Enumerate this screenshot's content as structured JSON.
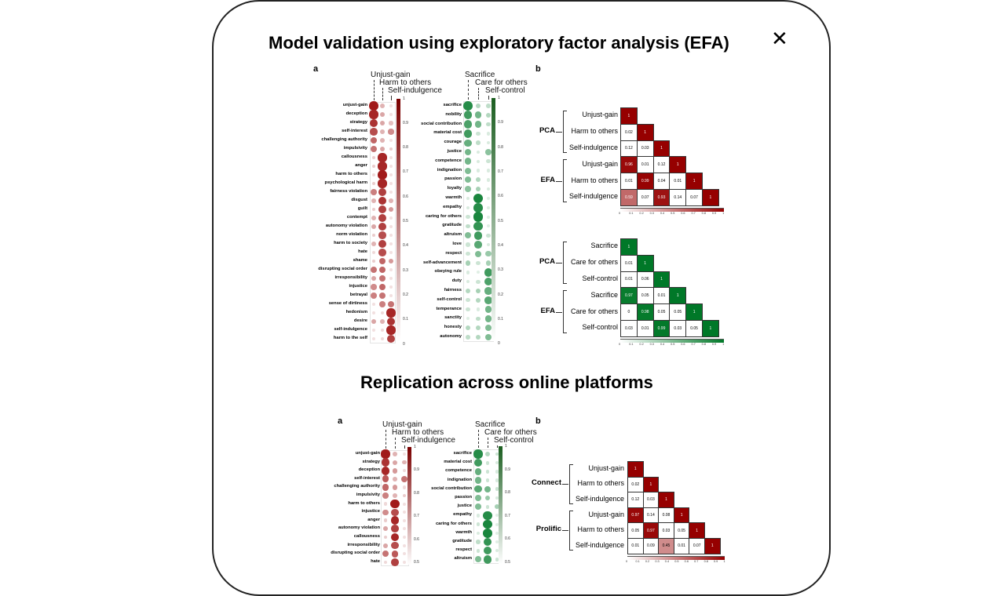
{
  "titles": {
    "main": "Model validation using exploratory factor analysis (EFA)",
    "section2": "Replication across online platforms"
  },
  "close_icon": "close-icon",
  "panels": {
    "a": "a",
    "b": "b"
  },
  "top_red": {
    "headers": [
      "Unjust-gain",
      "Harm to others",
      "Self-indulgence"
    ],
    "ticks": [
      "1",
      "0.9",
      "0.8",
      "0.7",
      "0.6",
      "0.5",
      "0.4",
      "0.3",
      "0.2",
      "0.1",
      "0"
    ],
    "rows": [
      {
        "label": "unjust-gain",
        "v": [
          0.9,
          0.3,
          0.1
        ]
      },
      {
        "label": "deception",
        "v": [
          0.85,
          0.35,
          0.1
        ]
      },
      {
        "label": "strategy",
        "v": [
          0.8,
          0.35,
          0.25
        ]
      },
      {
        "label": "self-interest",
        "v": [
          0.7,
          0.3,
          0.45
        ]
      },
      {
        "label": "challenging authority",
        "v": [
          0.6,
          0.3,
          0.1
        ]
      },
      {
        "label": "impulsivity",
        "v": [
          0.55,
          0.35,
          0.2
        ]
      },
      {
        "label": "callousness",
        "v": [
          0.2,
          0.85,
          0.1
        ]
      },
      {
        "label": "anger",
        "v": [
          0.2,
          0.85,
          0.1
        ]
      },
      {
        "label": "harm to others",
        "v": [
          0.15,
          0.9,
          0.1
        ]
      },
      {
        "label": "psychological harm",
        "v": [
          0.2,
          0.85,
          0.1
        ]
      },
      {
        "label": "fairness violation",
        "v": [
          0.5,
          0.75,
          0.1
        ]
      },
      {
        "label": "disgust",
        "v": [
          0.3,
          0.8,
          0.3
        ]
      },
      {
        "label": "guilt",
        "v": [
          0.2,
          0.75,
          0.4
        ]
      },
      {
        "label": "contempt",
        "v": [
          0.3,
          0.75,
          0.1
        ]
      },
      {
        "label": "autonomy violation",
        "v": [
          0.35,
          0.75,
          0.1
        ]
      },
      {
        "label": "norm violation",
        "v": [
          0.2,
          0.7,
          0.1
        ]
      },
      {
        "label": "harm to society",
        "v": [
          0.3,
          0.75,
          0.1
        ]
      },
      {
        "label": "hate",
        "v": [
          0.15,
          0.7,
          0.1
        ]
      },
      {
        "label": "shame",
        "v": [
          0.2,
          0.6,
          0.4
        ]
      },
      {
        "label": "disrupting social order",
        "v": [
          0.55,
          0.6,
          0.1
        ]
      },
      {
        "label": "irresponsibility",
        "v": [
          0.35,
          0.55,
          0.1
        ]
      },
      {
        "label": "injustice",
        "v": [
          0.45,
          0.6,
          0.1
        ]
      },
      {
        "label": "betrayal",
        "v": [
          0.5,
          0.55,
          0.1
        ]
      },
      {
        "label": "sense of dirtiness",
        "v": [
          0.1,
          0.5,
          0.55
        ]
      },
      {
        "label": "hedonism",
        "v": [
          0.1,
          0.15,
          0.85
        ]
      },
      {
        "label": "desire",
        "v": [
          0.35,
          0.3,
          0.8
        ]
      },
      {
        "label": "self-indulgence",
        "v": [
          0.1,
          0.15,
          0.85
        ]
      },
      {
        "label": "harm to the self",
        "v": [
          0.1,
          0.15,
          0.75
        ]
      }
    ]
  },
  "top_green": {
    "headers": [
      "Sacrifice",
      "Care for others",
      "Self-control"
    ],
    "ticks": [
      "1",
      "0.9",
      "0.8",
      "0.7",
      "0.6",
      "0.5",
      "0.4",
      "0.3",
      "0.2",
      "0.1",
      "0"
    ],
    "rows": [
      {
        "label": "sacrifice",
        "v": [
          0.85,
          0.3,
          0.25
        ]
      },
      {
        "label": "nobility",
        "v": [
          0.75,
          0.55,
          0.3
        ]
      },
      {
        "label": "social contribution",
        "v": [
          0.7,
          0.55,
          0.25
        ]
      },
      {
        "label": "material cost",
        "v": [
          0.75,
          0.2,
          0.15
        ]
      },
      {
        "label": "courage",
        "v": [
          0.6,
          0.25,
          0.15
        ]
      },
      {
        "label": "justice",
        "v": [
          0.55,
          0.15,
          0.45
        ]
      },
      {
        "label": "competence",
        "v": [
          0.55,
          0.15,
          0.2
        ]
      },
      {
        "label": "indignation",
        "v": [
          0.5,
          0.15,
          0.15
        ]
      },
      {
        "label": "passion",
        "v": [
          0.5,
          0.3,
          0.15
        ]
      },
      {
        "label": "loyalty",
        "v": [
          0.45,
          0.35,
          0.15
        ]
      },
      {
        "label": "warmth",
        "v": [
          0.15,
          0.9,
          0.1
        ]
      },
      {
        "label": "empathy",
        "v": [
          0.15,
          0.85,
          0.1
        ]
      },
      {
        "label": "caring for others",
        "v": [
          0.2,
          0.9,
          0.1
        ]
      },
      {
        "label": "gratitude",
        "v": [
          0.25,
          0.8,
          0.1
        ]
      },
      {
        "label": "altruism",
        "v": [
          0.5,
          0.75,
          0.2
        ]
      },
      {
        "label": "love",
        "v": [
          0.2,
          0.65,
          0.15
        ]
      },
      {
        "label": "respect",
        "v": [
          0.2,
          0.5,
          0.4
        ]
      },
      {
        "label": "self-advancement",
        "v": [
          0.35,
          0.2,
          0.35
        ]
      },
      {
        "label": "obeying rule",
        "v": [
          0.15,
          0.1,
          0.75
        ]
      },
      {
        "label": "duty",
        "v": [
          0.15,
          0.2,
          0.7
        ]
      },
      {
        "label": "fairness",
        "v": [
          0.3,
          0.35,
          0.6
        ]
      },
      {
        "label": "self-control",
        "v": [
          0.2,
          0.3,
          0.65
        ]
      },
      {
        "label": "temperance",
        "v": [
          0.2,
          0.15,
          0.55
        ]
      },
      {
        "label": "sanctity",
        "v": [
          0.1,
          0.25,
          0.55
        ]
      },
      {
        "label": "honesty",
        "v": [
          0.3,
          0.3,
          0.5
        ]
      },
      {
        "label": "autonomy",
        "v": [
          0.25,
          0.3,
          0.5
        ]
      }
    ]
  },
  "corr_red_top": {
    "groups": [
      "PCA",
      "EFA"
    ],
    "labels": [
      "Unjust-gain",
      "Harm to others",
      "Self-indulgence",
      "Unjust-gain",
      "Harm to others",
      "Self-indulgence"
    ],
    "matrix": [
      [
        "1"
      ],
      [
        "0.02",
        "1"
      ],
      [
        "0.12",
        "0.03",
        "1"
      ],
      [
        "0.96",
        "0.01",
        "0.12",
        "1"
      ],
      [
        "0.01",
        "0.99",
        "0.04",
        "0.01",
        "1"
      ],
      [
        "0.59",
        "0.07",
        "0.93",
        "0.14",
        "0.07",
        "1"
      ]
    ],
    "ticks": [
      "0",
      "0.1",
      "0.2",
      "0.3",
      "0.4",
      "0.5",
      "0.6",
      "0.7",
      "0.8",
      "0.9",
      "1"
    ]
  },
  "corr_green_top": {
    "groups": [
      "PCA",
      "EFA"
    ],
    "labels": [
      "Sacrifice",
      "Care for others",
      "Self-control",
      "Sacrifice",
      "Care for others",
      "Self-control"
    ],
    "matrix": [
      [
        "1"
      ],
      [
        "0.01",
        "1"
      ],
      [
        "0.01",
        "0.06",
        "1"
      ],
      [
        "0.97",
        "0.05",
        "0.01",
        "1"
      ],
      [
        "0",
        "0.98",
        "0.05",
        "0.05",
        "1"
      ],
      [
        "0.03",
        "0.01",
        "0.99",
        "0.03",
        "0.05",
        "1"
      ]
    ],
    "ticks": [
      "0",
      "0.1",
      "0.2",
      "0.3",
      "0.4",
      "0.5",
      "0.6",
      "0.7",
      "0.8",
      "0.9",
      "1"
    ]
  },
  "bottom_red": {
    "headers": [
      "Unjust-gain",
      "Harm to others",
      "Self-indulgence"
    ],
    "ticks": [
      "1",
      "0.9",
      "0.8",
      "0.7",
      "0.6",
      "0.5"
    ],
    "rows": [
      {
        "label": "unjust-gain",
        "v": [
          0.9,
          0.3,
          0.1
        ]
      },
      {
        "label": "strategy",
        "v": [
          0.8,
          0.35,
          0.3
        ]
      },
      {
        "label": "deception",
        "v": [
          0.85,
          0.4,
          0.15
        ]
      },
      {
        "label": "self-interest",
        "v": [
          0.65,
          0.3,
          0.55
        ]
      },
      {
        "label": "challenging authority",
        "v": [
          0.6,
          0.4,
          0.15
        ]
      },
      {
        "label": "impulsivity",
        "v": [
          0.5,
          0.3,
          0.2
        ]
      },
      {
        "label": "harm to others",
        "v": [
          0.15,
          0.9,
          0.1
        ]
      },
      {
        "label": "injustice",
        "v": [
          0.45,
          0.7,
          0.1
        ]
      },
      {
        "label": "anger",
        "v": [
          0.2,
          0.85,
          0.1
        ]
      },
      {
        "label": "autonomy violation",
        "v": [
          0.35,
          0.75,
          0.1
        ]
      },
      {
        "label": "callousness",
        "v": [
          0.2,
          0.85,
          0.1
        ]
      },
      {
        "label": "irresponsibility",
        "v": [
          0.35,
          0.7,
          0.1
        ]
      },
      {
        "label": "disrupting social order",
        "v": [
          0.55,
          0.65,
          0.1
        ]
      },
      {
        "label": "hate",
        "v": [
          0.15,
          0.75,
          0.1
        ]
      }
    ]
  },
  "bottom_green": {
    "headers": [
      "Sacrifice",
      "Care for others",
      "Self-control"
    ],
    "ticks": [
      "1",
      "0.9",
      "0.8",
      "0.7",
      "0.6",
      "0.5"
    ],
    "rows": [
      {
        "label": "sacrifice",
        "v": [
          0.85,
          0.3,
          0.2
        ]
      },
      {
        "label": "material cost",
        "v": [
          0.75,
          0.2,
          0.15
        ]
      },
      {
        "label": "competence",
        "v": [
          0.6,
          0.2,
          0.15
        ]
      },
      {
        "label": "indignation",
        "v": [
          0.55,
          0.2,
          0.15
        ]
      },
      {
        "label": "social contribution",
        "v": [
          0.65,
          0.55,
          0.2
        ]
      },
      {
        "label": "passion",
        "v": [
          0.5,
          0.4,
          0.15
        ]
      },
      {
        "label": "justice",
        "v": [
          0.5,
          0.2,
          0.35
        ]
      },
      {
        "label": "empathy",
        "v": [
          0.15,
          0.85,
          0.1
        ]
      },
      {
        "label": "caring for others",
        "v": [
          0.2,
          0.9,
          0.1
        ]
      },
      {
        "label": "warmth",
        "v": [
          0.15,
          0.9,
          0.1
        ]
      },
      {
        "label": "gratitude",
        "v": [
          0.25,
          0.8,
          0.1
        ]
      },
      {
        "label": "respect",
        "v": [
          0.2,
          0.75,
          0.15
        ]
      },
      {
        "label": "altruism",
        "v": [
          0.5,
          0.75,
          0.2
        ]
      }
    ]
  },
  "corr_red_bottom": {
    "groups": [
      "Connect",
      "Prolific"
    ],
    "labels": [
      "Unjust-gain",
      "Harm to others",
      "Self-indulgence",
      "Unjust-gain",
      "Harm to others",
      "Self-indulgence"
    ],
    "matrix": [
      [
        "1"
      ],
      [
        "0.02",
        "1"
      ],
      [
        "0.12",
        "0.03",
        "1"
      ],
      [
        "0.97",
        "0.14",
        "0.08",
        "1"
      ],
      [
        "0.05",
        "0.97",
        "0.03",
        "0.05",
        "1"
      ],
      [
        "0.01",
        "0.09",
        "0.45",
        "0.01",
        "0.07",
        "1"
      ]
    ],
    "ticks": [
      "0",
      "0.1",
      "0.2",
      "0.3",
      "0.4",
      "0.5",
      "0.6",
      "0.7",
      "0.8",
      "0.9",
      "1"
    ]
  }
}
